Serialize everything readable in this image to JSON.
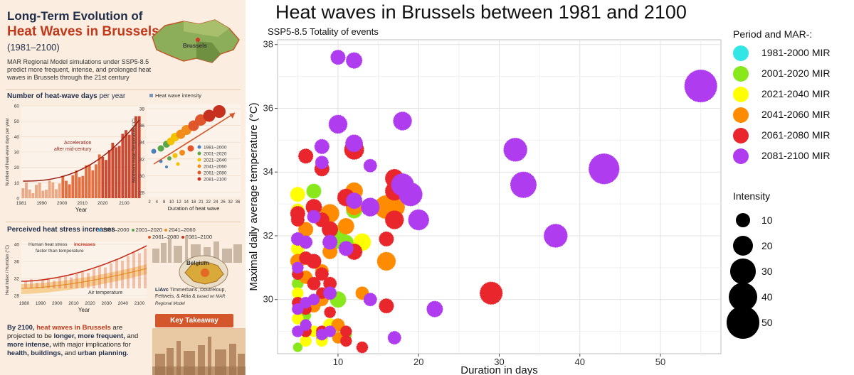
{
  "infographic": {
    "title_line1": "Long-Term Evolution of",
    "title_line2": "Heat Waves in Brussels",
    "title_line3": "(1981–2100)",
    "map_label": "Brussels",
    "subtitle": "MAR Regional Model simulations under SSP5-8.5 predict more frequent, intense, and prolonged heat waves in Brussels through the 21st century",
    "section1_title_bold": "Number of heat-wave days",
    "section1_title_light": "per year",
    "mini1_ylabel": "Number of heat-wave days per year",
    "mini1_xlabel": "Year",
    "mini1_yticks": [
      "60",
      "50",
      "40",
      "30",
      "20",
      "10",
      "0"
    ],
    "mini1_xticks": [
      "1981",
      "1990",
      "2000",
      "2010",
      "2020",
      "2100"
    ],
    "mini1_annotation1": "Acceleration",
    "mini1_annotation2": "after mid-century",
    "mini2_legend": "Heat wave intensity",
    "mini2_ylabel": "Maximum mean Temperature (°C)",
    "mini2_xlabel": "Duration of heat wave",
    "mini2_yticks": [
      "38",
      "36",
      "34",
      "32",
      "30",
      "28"
    ],
    "mini2_xticks": [
      "2",
      "4",
      "8",
      "10",
      "12",
      "14",
      "18",
      "21",
      "22",
      "24",
      "26",
      "32",
      "36"
    ],
    "mini2_periods": [
      "1981–2000",
      "2001–2020",
      "2021–2040",
      "2041–2060",
      "2061–2080",
      "2081–2100"
    ],
    "section2_title": "Perceived heat stress increases",
    "mini3_legend": [
      "1981–2000",
      "2001–2020",
      "2041–2060",
      "2061–2080",
      "2081–2100"
    ],
    "mini3_annotation1": "Human heat stress",
    "mini3_annotation1b": "increases",
    "mini3_annotation2": "faster than temperature",
    "mini3_annotation3": "Air temperature",
    "mini3_ylabel": "Heat Index / Humidex (°C)",
    "mini3_xlabel": "Year",
    "mini3_yticks": [
      "40",
      "36",
      "32",
      "28"
    ],
    "mini3_xticks": [
      "1980",
      "1990",
      "2000",
      "2010",
      "2020",
      "2030",
      "2040",
      "2100"
    ],
    "map2_label": "Belgium",
    "credit_logo": "LiAvc",
    "credit_text": "Timmerbans, Doutreloup, Fettweis, & Attia &",
    "credit_text2": "based on MAR Regional Model",
    "key_takeaway": "Key Takeaway",
    "bottom_text_a": "By 2100,",
    "bottom_text_b": "heat waves in Brussels",
    "bottom_text_c": "are projected to be",
    "bottom_text_d": "longer, more frequent,",
    "bottom_text_e": "and",
    "bottom_text_f": "more intense,",
    "bottom_text_g": "with major implications for",
    "bottom_text_h": "health, buildings,",
    "bottom_text_i": "and",
    "bottom_text_j": "urban planning."
  },
  "chart_data": {
    "type": "scatter",
    "title": "Heat waves in Brussels between 1981 and 2100",
    "subtitle": "SSP5-8.5  Totality of events",
    "xlabel": "Duration in days",
    "ylabel": "Maximal daily average temperature (°C)",
    "xlim": [
      2.5,
      57.5
    ],
    "ylim": [
      28.3,
      38.15
    ],
    "xticks": [
      10,
      20,
      30,
      40,
      50
    ],
    "yticks": [
      30,
      32,
      34,
      36,
      38
    ],
    "grid": true,
    "legend_placement": "right",
    "color_legend_title": "Period and MAR-:",
    "size_legend_title": "Intensity",
    "size_legend": [
      10,
      20,
      30,
      40,
      50
    ],
    "series": [
      {
        "name": "1981-2000 MIR",
        "color": "#33e6e6",
        "points": []
      },
      {
        "name": "2001-2020 MIR",
        "color": "#88e81c",
        "points": [
          [
            5,
            28.5,
            4
          ],
          [
            5,
            30.5,
            6
          ],
          [
            6,
            29.5,
            5
          ],
          [
            6,
            31.3,
            8
          ],
          [
            7,
            33.4,
            10
          ],
          [
            8,
            28.8,
            6
          ],
          [
            10,
            30.0,
            12
          ],
          [
            10,
            31.9,
            18
          ],
          [
            10,
            32.1,
            10
          ],
          [
            11,
            28.9,
            6
          ],
          [
            11,
            31.8,
            10
          ],
          [
            12,
            32.8,
            12
          ]
        ]
      },
      {
        "name": "2021-2040 MIR",
        "color": "#ffff00",
        "points": [
          [
            5,
            33.3,
            10
          ],
          [
            5,
            32.8,
            8
          ],
          [
            5,
            31.6,
            8
          ],
          [
            5,
            30.2,
            6
          ],
          [
            5,
            29.4,
            6
          ],
          [
            6,
            28.7,
            6
          ],
          [
            7,
            29.0,
            6
          ],
          [
            8,
            28.7,
            6
          ],
          [
            9,
            29.2,
            8
          ],
          [
            13,
            31.8,
            14
          ]
        ]
      },
      {
        "name": "2041-2060 MIR",
        "color": "#ff8c00",
        "points": [
          [
            5,
            31.2,
            10
          ],
          [
            6,
            32.2,
            10
          ],
          [
            6,
            30.7,
            8
          ],
          [
            7,
            29.8,
            8
          ],
          [
            8,
            30.9,
            8
          ],
          [
            8,
            30.0,
            8
          ],
          [
            9,
            32.7,
            16
          ],
          [
            9,
            31.5,
            10
          ],
          [
            10,
            29.2,
            8
          ],
          [
            10,
            28.8,
            6
          ],
          [
            11,
            32.3,
            12
          ],
          [
            12,
            33.4,
            14
          ],
          [
            12,
            32.9,
            12
          ],
          [
            13,
            30.2,
            8
          ],
          [
            16,
            31.2,
            16
          ],
          [
            16,
            32.9,
            26
          ],
          [
            17,
            32.9,
            20
          ]
        ]
      },
      {
        "name": "2061-2080 MIR",
        "color": "#e8262b",
        "points": [
          [
            5,
            30.8,
            6
          ],
          [
            5,
            29.9,
            6
          ],
          [
            5,
            32.7,
            10
          ],
          [
            5,
            32.5,
            8
          ],
          [
            6,
            34.5,
            10
          ],
          [
            6,
            31.3,
            8
          ],
          [
            6,
            29.7,
            6
          ],
          [
            6,
            29.0,
            6
          ],
          [
            7,
            31.2,
            10
          ],
          [
            7,
            32.9,
            12
          ],
          [
            7,
            30.5,
            8
          ],
          [
            8,
            34.1,
            10
          ],
          [
            8,
            32.5,
            10
          ],
          [
            8,
            30.8,
            8
          ],
          [
            8,
            30.2,
            6
          ],
          [
            8,
            29.0,
            6
          ],
          [
            9,
            32.2,
            12
          ],
          [
            9,
            29.6,
            6
          ],
          [
            9,
            30.5,
            8
          ],
          [
            11,
            28.7,
            6
          ],
          [
            11,
            29.0,
            6
          ],
          [
            11,
            33.2,
            14
          ],
          [
            12,
            34.7,
            18
          ],
          [
            12,
            31.5,
            12
          ],
          [
            13,
            28.5,
            6
          ],
          [
            16,
            29.8,
            10
          ],
          [
            16,
            31.9,
            10
          ],
          [
            17,
            33.8,
            16
          ],
          [
            17,
            33.4,
            16
          ],
          [
            17,
            32.5,
            16
          ],
          [
            29,
            30.2,
            24
          ]
        ]
      },
      {
        "name": "2081-2100 MIR",
        "color": "#b03cf0",
        "points": [
          [
            5,
            31.9,
            8
          ],
          [
            5,
            31.0,
            6
          ],
          [
            5,
            29.7,
            6
          ],
          [
            5,
            29.0,
            6
          ],
          [
            6,
            29.9,
            6
          ],
          [
            6,
            29.2,
            6
          ],
          [
            6,
            31.8,
            8
          ],
          [
            7,
            32.6,
            8
          ],
          [
            7,
            30.0,
            6
          ],
          [
            8,
            34.8,
            10
          ],
          [
            8,
            34.3,
            8
          ],
          [
            8,
            28.9,
            6
          ],
          [
            9,
            31.8,
            10
          ],
          [
            9,
            30.2,
            8
          ],
          [
            9,
            29.0,
            6
          ],
          [
            10,
            37.6,
            10
          ],
          [
            10,
            35.5,
            16
          ],
          [
            11,
            31.6,
            10
          ],
          [
            12,
            37.5,
            12
          ],
          [
            12,
            34.9,
            14
          ],
          [
            12,
            33.1,
            12
          ],
          [
            14,
            34.2,
            8
          ],
          [
            14,
            32.9,
            16
          ],
          [
            14,
            30.0,
            8
          ],
          [
            17,
            28.8,
            8
          ],
          [
            18,
            35.6,
            16
          ],
          [
            18,
            33.6,
            24
          ],
          [
            19,
            33.3,
            26
          ],
          [
            20,
            32.5,
            20
          ],
          [
            22,
            29.7,
            12
          ],
          [
            32,
            34.7,
            26
          ],
          [
            33,
            33.6,
            32
          ],
          [
            37,
            32.0,
            26
          ],
          [
            43,
            34.1,
            44
          ],
          [
            55,
            36.7,
            50
          ]
        ]
      }
    ]
  }
}
